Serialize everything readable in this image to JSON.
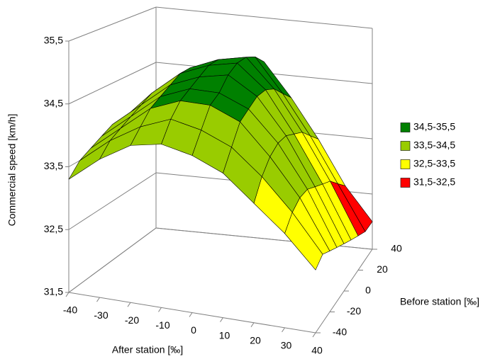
{
  "chart_data": {
    "type": "surface",
    "z_label": "Commercial speed [km/h]",
    "x_label": "After station [‰]",
    "y_label": "Before station [‰]",
    "x": [
      -40,
      -30,
      -20,
      -10,
      0,
      10,
      20,
      30,
      40
    ],
    "y": [
      -40,
      -30,
      -20,
      -10,
      0,
      10,
      20,
      30,
      40
    ],
    "z": [
      [
        33.3,
        33.7,
        34.0,
        34.1,
        34.0,
        33.8,
        33.4,
        33.0,
        32.5
      ],
      [
        33.5,
        33.9,
        34.2,
        34.4,
        34.3,
        34.1,
        33.7,
        33.2,
        32.6
      ],
      [
        33.6,
        34.0,
        34.4,
        34.6,
        34.6,
        34.4,
        33.9,
        33.3,
        32.5
      ],
      [
        33.7,
        34.1,
        34.5,
        34.7,
        34.7,
        34.5,
        34.0,
        33.3,
        32.4
      ],
      [
        33.8,
        34.2,
        34.6,
        34.8,
        34.9,
        34.6,
        34.0,
        33.2,
        32.3
      ],
      [
        33.8,
        34.3,
        34.7,
        34.9,
        35.0,
        34.6,
        33.9,
        33.1,
        32.2
      ],
      [
        33.8,
        34.3,
        34.7,
        34.9,
        35.0,
        34.5,
        33.8,
        33.0,
        32.1
      ],
      [
        33.7,
        34.2,
        34.6,
        34.8,
        34.9,
        34.3,
        33.6,
        32.8,
        32.0
      ],
      [
        33.6,
        34.1,
        34.5,
        34.7,
        34.7,
        34.1,
        33.4,
        32.6,
        32.0
      ]
    ],
    "bands": [
      {
        "name": "34,5-35,5",
        "color": "#008000",
        "range": [
          34.5,
          35.5
        ]
      },
      {
        "name": "33,5-34,5",
        "color": "#99cc00",
        "range": [
          33.5,
          34.5
        ]
      },
      {
        "name": "32,5-33,5",
        "color": "#ffff00",
        "range": [
          32.5,
          33.5
        ]
      },
      {
        "name": "31,5-32,5",
        "color": "#ff0000",
        "range": [
          31.5,
          32.5
        ]
      }
    ],
    "xlim": [
      -40,
      40
    ],
    "xticks": [
      -40,
      -30,
      -20,
      -10,
      0,
      10,
      20,
      30,
      40
    ],
    "ylim": [
      -40,
      40
    ],
    "yticks": [
      -40,
      -20,
      0,
      20,
      40
    ],
    "zlim": [
      31.5,
      35.5
    ],
    "zticks": [
      {
        "value": 31.5,
        "label": "31,5"
      },
      {
        "value": 32.5,
        "label": "32,5"
      },
      {
        "value": 33.5,
        "label": "33,5"
      },
      {
        "value": 34.5,
        "label": "34,5"
      },
      {
        "value": 35.5,
        "label": "35,5"
      }
    ],
    "grid": true,
    "legend": "right"
  }
}
